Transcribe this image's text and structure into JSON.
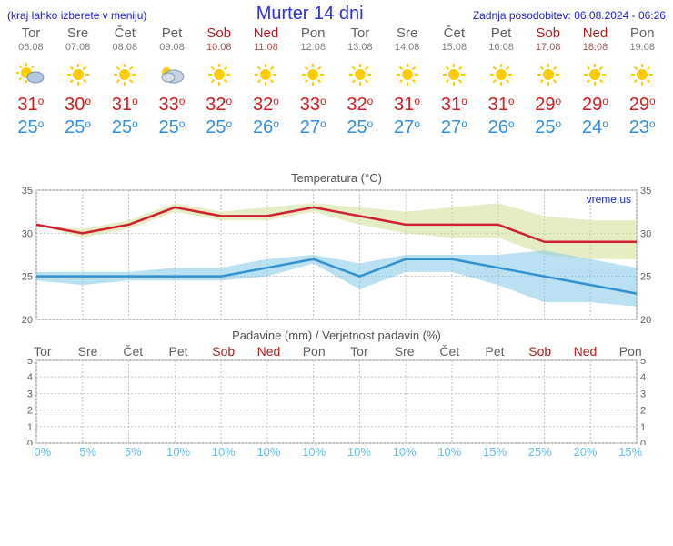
{
  "header": {
    "left_note": "(kraj lahko izberete v meniju)",
    "title": "Murter 14 dni",
    "last_update_label": "Zadnja posodobitev: 06.08.2024 - 06:26"
  },
  "days": [
    {
      "name": "Tor",
      "date": "06.08",
      "weekend": false,
      "icon": "partly",
      "high": 31,
      "low": 25,
      "prob": "0%"
    },
    {
      "name": "Sre",
      "date": "07.08",
      "weekend": false,
      "icon": "sun",
      "high": 30,
      "low": 25,
      "prob": "5%"
    },
    {
      "name": "Čet",
      "date": "08.08",
      "weekend": false,
      "icon": "sun",
      "high": 31,
      "low": 25,
      "prob": "5%"
    },
    {
      "name": "Pet",
      "date": "09.08",
      "weekend": false,
      "icon": "cloudy",
      "high": 33,
      "low": 25,
      "prob": "10%"
    },
    {
      "name": "Sob",
      "date": "10.08",
      "weekend": true,
      "icon": "sun",
      "high": 32,
      "low": 25,
      "prob": "10%"
    },
    {
      "name": "Ned",
      "date": "11.08",
      "weekend": true,
      "icon": "sun",
      "high": 32,
      "low": 26,
      "prob": "10%"
    },
    {
      "name": "Pon",
      "date": "12.08",
      "weekend": false,
      "icon": "sun",
      "high": 33,
      "low": 27,
      "prob": "10%"
    },
    {
      "name": "Tor",
      "date": "13.08",
      "weekend": false,
      "icon": "sun",
      "high": 32,
      "low": 25,
      "prob": "10%"
    },
    {
      "name": "Sre",
      "date": "14.08",
      "weekend": false,
      "icon": "sun",
      "high": 31,
      "low": 27,
      "prob": "10%"
    },
    {
      "name": "Čet",
      "date": "15.08",
      "weekend": false,
      "icon": "sun",
      "high": 31,
      "low": 27,
      "prob": "10%"
    },
    {
      "name": "Pet",
      "date": "16.08",
      "weekend": false,
      "icon": "sun",
      "high": 31,
      "low": 26,
      "prob": "15%"
    },
    {
      "name": "Sob",
      "date": "17.08",
      "weekend": true,
      "icon": "sun",
      "high": 29,
      "low": 25,
      "prob": "25%"
    },
    {
      "name": "Ned",
      "date": "18.08",
      "weekend": true,
      "icon": "sun",
      "high": 29,
      "low": 24,
      "prob": "20%"
    },
    {
      "name": "Pon",
      "date": "19.08",
      "weekend": false,
      "icon": "sun",
      "high": 29,
      "low": 23,
      "prob": "15%"
    }
  ],
  "temp_chart": {
    "title": "Temperatura (°C)",
    "watermark": "vreme.us",
    "ylim": [
      20,
      35
    ],
    "yticks": [
      20,
      25,
      30,
      35
    ],
    "grid_color": "#c0c0c0",
    "high_line_color": "#d02030",
    "high_band_color": "#d0e090",
    "low_line_color": "#3090d0",
    "low_band_color": "#80c8e8",
    "high_series": [
      31,
      30,
      31,
      33,
      32,
      32,
      33,
      32,
      31,
      31,
      31,
      29,
      29,
      29
    ],
    "high_upper": [
      31,
      30.5,
      31.5,
      33.5,
      32.5,
      33,
      33.5,
      33,
      32.5,
      33,
      33.5,
      32,
      31.5,
      31.5
    ],
    "high_lower": [
      31,
      29.5,
      30.5,
      32.5,
      31.5,
      31.5,
      32.5,
      31,
      30,
      29.5,
      29.5,
      27.5,
      27,
      27
    ],
    "low_series": [
      25,
      25,
      25,
      25,
      25,
      26,
      27,
      25,
      27,
      27,
      26,
      25,
      24,
      23
    ],
    "low_upper": [
      25.5,
      25.5,
      25.5,
      26,
      26,
      27,
      27.5,
      26.5,
      27.5,
      27.5,
      27.5,
      28,
      27,
      26
    ],
    "low_lower": [
      24.5,
      24,
      24.5,
      24.5,
      24.5,
      25,
      26.5,
      23.5,
      25.5,
      25.5,
      24,
      22,
      22,
      21.5
    ],
    "line_width": 2.5,
    "band_opacity": 0.55
  },
  "precip_chart": {
    "title": "Padavine (mm) / Verjetnost padavin (%)",
    "ylim": [
      0,
      5
    ],
    "yticks": [
      0,
      1,
      2,
      3,
      4,
      5
    ],
    "grid_color": "#c0c0c0"
  },
  "colors": {
    "bg": "#ffffff",
    "text_gray": "#606060",
    "weekend": "#b02020",
    "link_blue": "#2020d0",
    "prob_blue": "#60c0e8"
  }
}
